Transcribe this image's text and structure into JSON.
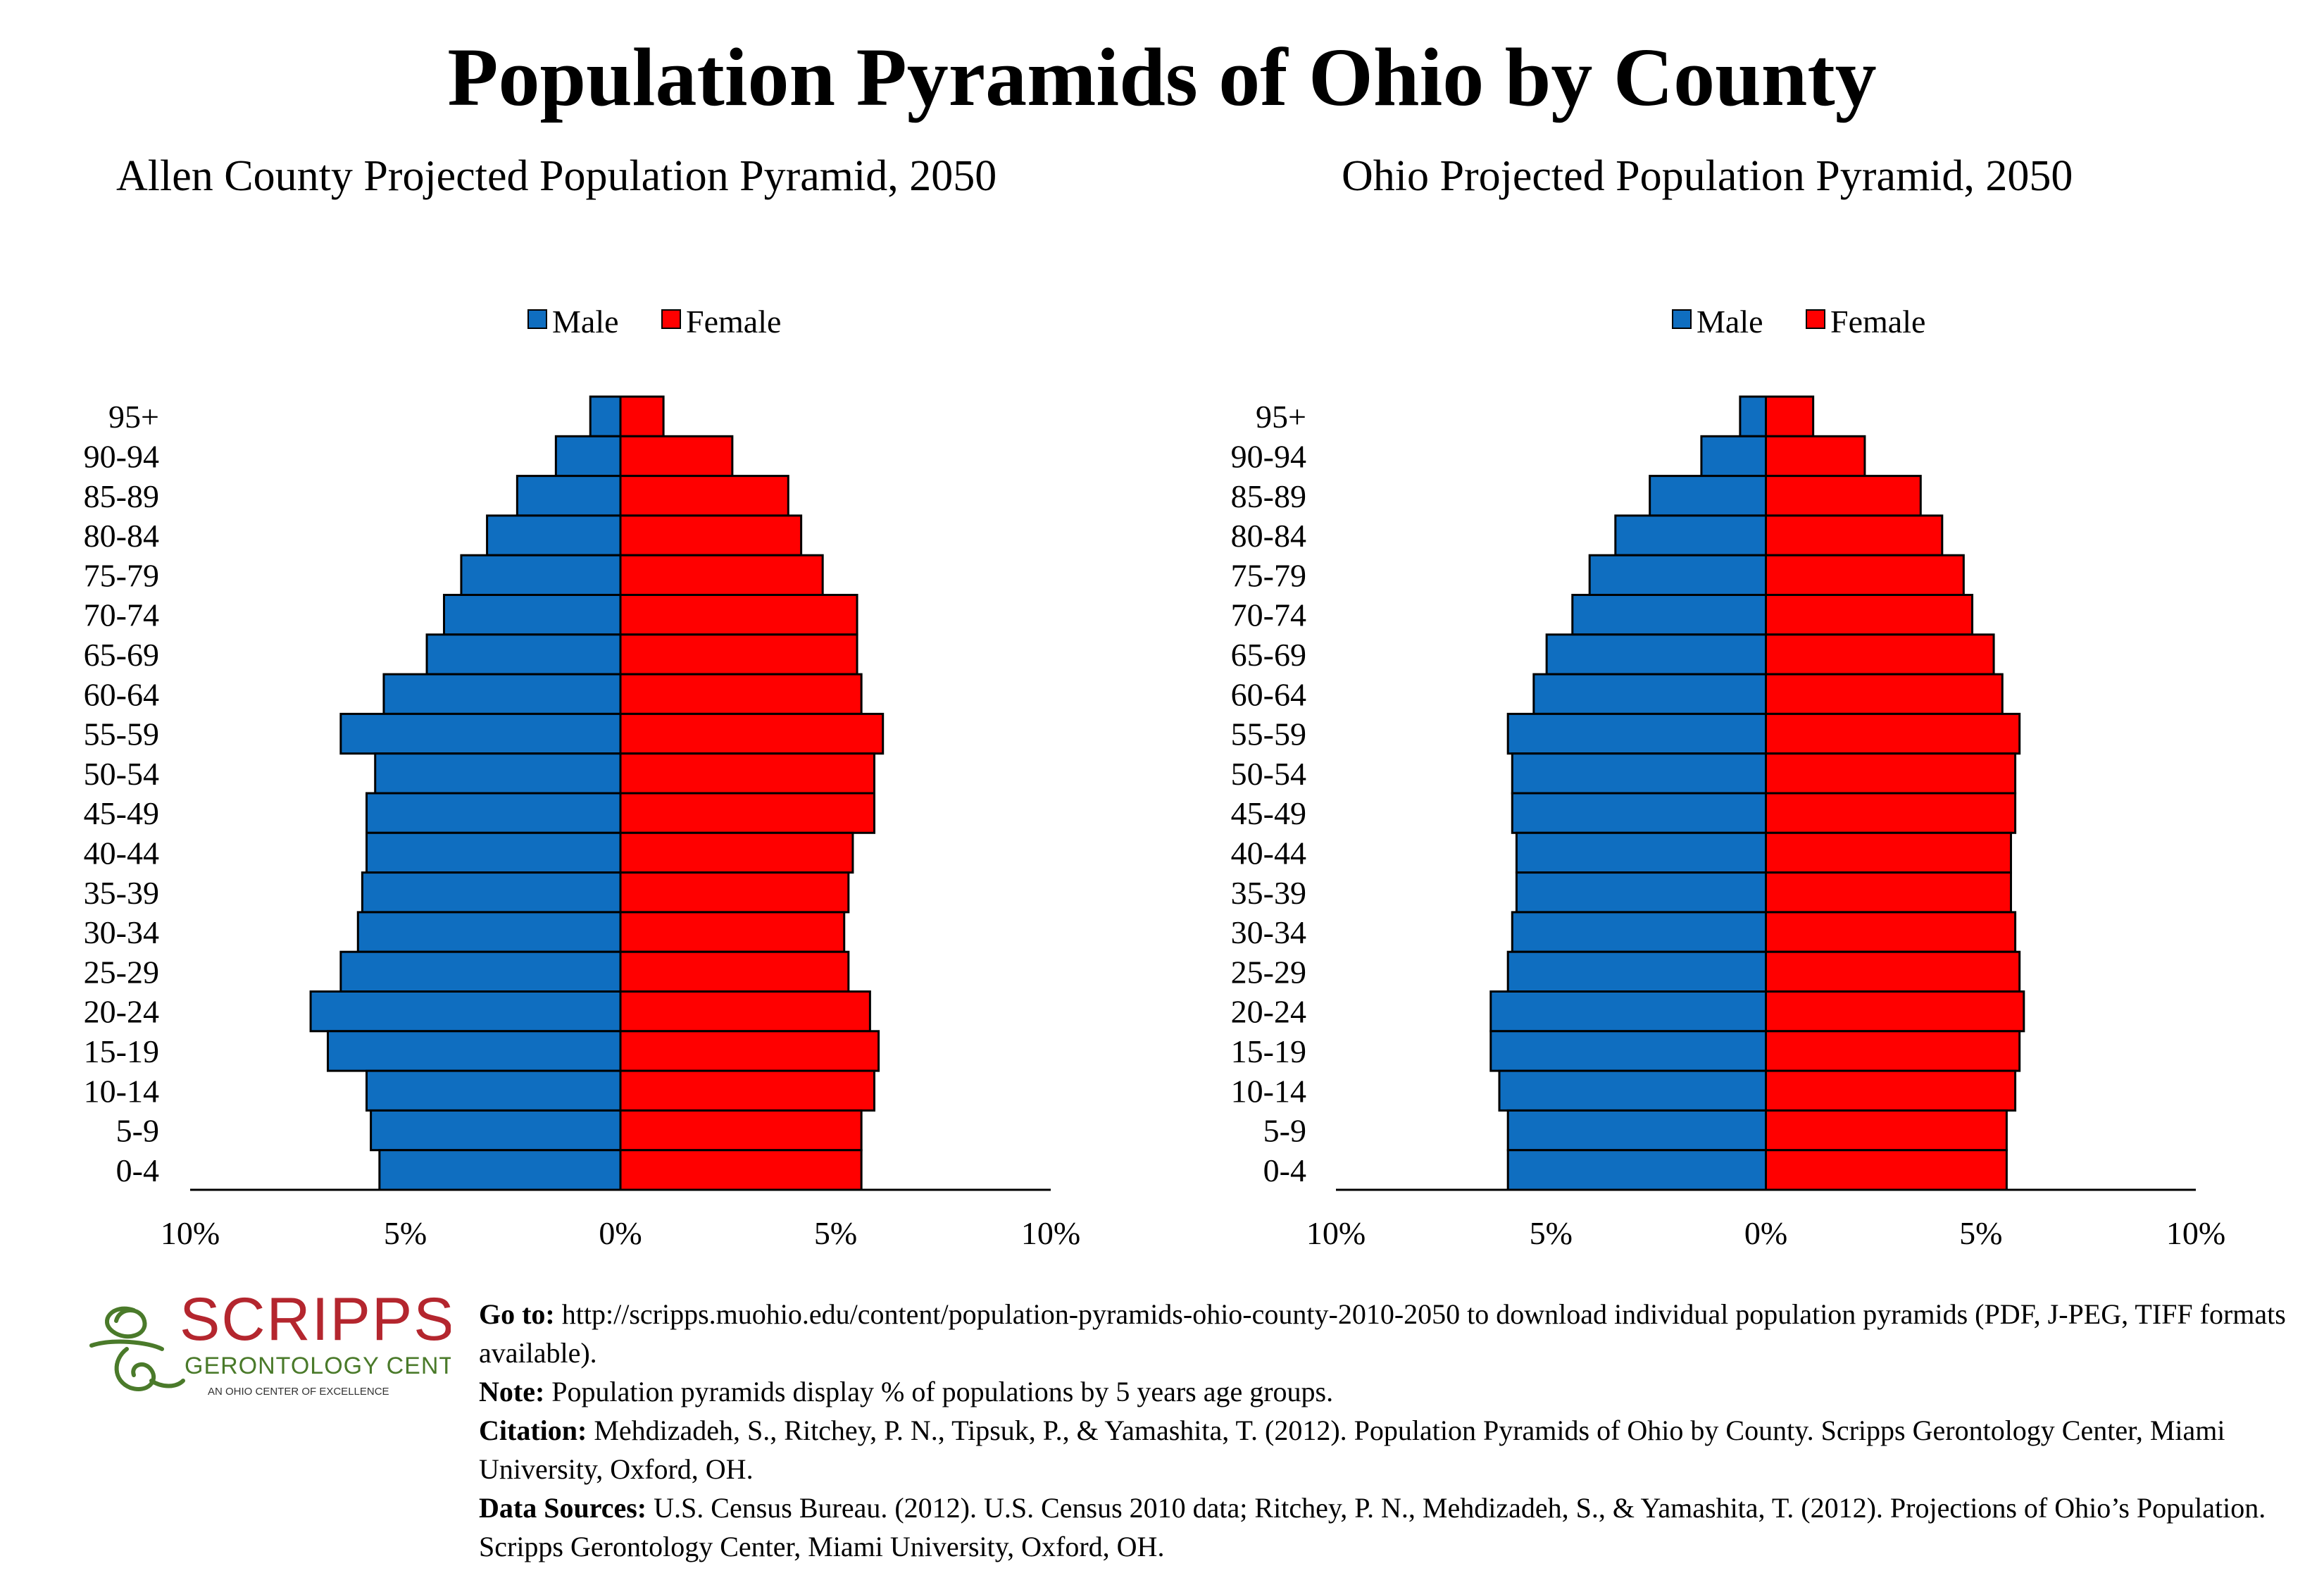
{
  "main_title": "Population Pyramids of Ohio by County",
  "colors": {
    "male": "#0f6ec0",
    "female": "#ff0000"
  },
  "chart_data": [
    {
      "type": "bar",
      "orientation": "horizontal-pyramid",
      "title": "Allen County Projected Population Pyramid, 2050",
      "categories": [
        "95+",
        "90-94",
        "85-89",
        "80-84",
        "75-79",
        "70-74",
        "65-69",
        "60-64",
        "55-59",
        "50-54",
        "45-49",
        "40-44",
        "35-39",
        "30-34",
        "25-29",
        "20-24",
        "15-19",
        "10-14",
        "5-9",
        "0-4"
      ],
      "series": [
        {
          "name": "Male",
          "values": [
            0.7,
            1.5,
            2.4,
            3.1,
            3.7,
            4.1,
            4.5,
            5.5,
            6.5,
            5.7,
            5.9,
            5.9,
            6.0,
            6.1,
            6.5,
            7.2,
            6.8,
            5.9,
            5.8,
            5.6
          ]
        },
        {
          "name": "Female",
          "values": [
            1.0,
            2.6,
            3.9,
            4.2,
            4.7,
            5.5,
            5.5,
            5.6,
            6.1,
            5.9,
            5.9,
            5.4,
            5.3,
            5.2,
            5.3,
            5.8,
            6.0,
            5.9,
            5.6,
            5.6
          ]
        }
      ],
      "xlim": [
        -10,
        10
      ],
      "xticks": [
        "10%",
        "5%",
        "0%",
        "5%",
        "10%"
      ],
      "legend": "top-center"
    },
    {
      "type": "bar",
      "orientation": "horizontal-pyramid",
      "title": "Ohio Projected Population Pyramid, 2050",
      "categories": [
        "95+",
        "90-94",
        "85-89",
        "80-84",
        "75-79",
        "70-74",
        "65-69",
        "60-64",
        "55-59",
        "50-54",
        "45-49",
        "40-44",
        "35-39",
        "30-34",
        "25-29",
        "20-24",
        "15-19",
        "10-14",
        "5-9",
        "0-4"
      ],
      "series": [
        {
          "name": "Male",
          "values": [
            0.6,
            1.5,
            2.7,
            3.5,
            4.1,
            4.5,
            5.1,
            5.4,
            6.0,
            5.9,
            5.9,
            5.8,
            5.8,
            5.9,
            6.0,
            6.4,
            6.4,
            6.2,
            6.0,
            6.0
          ]
        },
        {
          "name": "Female",
          "values": [
            1.1,
            2.3,
            3.6,
            4.1,
            4.6,
            4.8,
            5.3,
            5.5,
            5.9,
            5.8,
            5.8,
            5.7,
            5.7,
            5.8,
            5.9,
            6.0,
            5.9,
            5.8,
            5.6,
            5.6
          ]
        }
      ],
      "xlim": [
        -10,
        10
      ],
      "xticks": [
        "10%",
        "5%",
        "0%",
        "5%",
        "10%"
      ],
      "legend": "top-center"
    }
  ],
  "logo": {
    "name": "SCRIPPS",
    "sub": "GERONTOLOGY CENTER",
    "tagline": "AN OHIO CENTER OF EXCELLENCE"
  },
  "footer": {
    "goto_label": "Go to:",
    "goto_text": " http://scripps.muohio.edu/content/population-pyramids-ohio-county-2010-2050 to download individual population pyramids (PDF, J-PEG, TIFF formats available).",
    "note_label": "Note:",
    "note_text": " Population pyramids display % of populations by 5 years age groups.",
    "citation_label": "Citation:",
    "citation_text": " Mehdizadeh, S., Ritchey, P. N., Tipsuk, P., & Yamashita, T. (2012). Population Pyramids of Ohio by County. Scripps Gerontology Center, Miami University, Oxford, OH.",
    "sources_label": "Data Sources:",
    "sources_text": " U.S. Census Bureau. (2012). U.S. Census 2010 data; Ritchey, P. N., Mehdizadeh, S., & Yamashita, T. (2012). Projections of Ohio’s Population. Scripps Gerontology Center, Miami University, Oxford, OH."
  }
}
